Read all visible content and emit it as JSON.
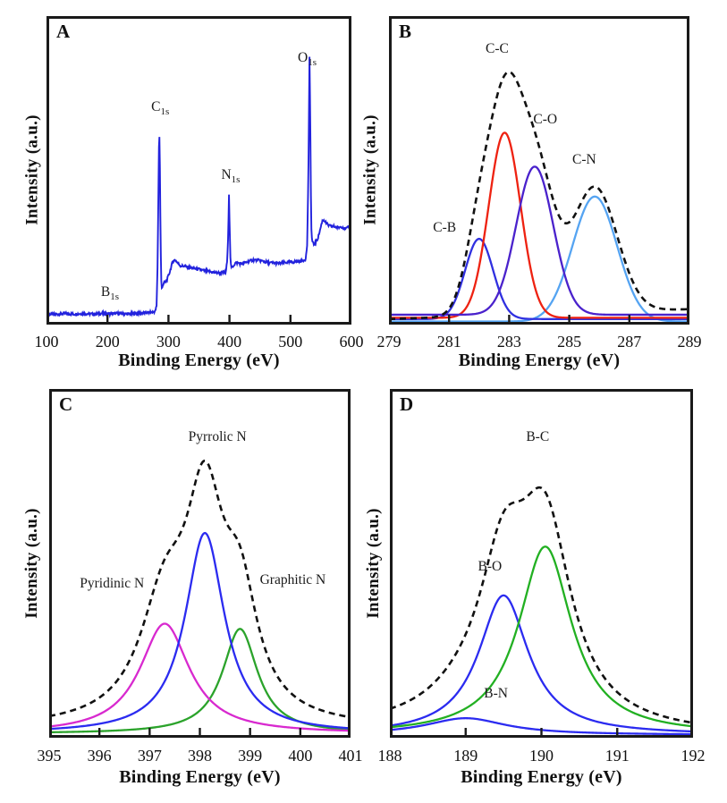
{
  "figure": {
    "background": "#ffffff",
    "axis_color": "#1a1a1a",
    "ylabel": "Intensity (a.u.)",
    "xlabel": "Binding Energy (eV)"
  },
  "chart_data": [
    {
      "type": "line",
      "panel_label": "A",
      "description": "XPS survey spectrum",
      "xlabel": "Binding Energy (eV)",
      "ylabel": "Intensity (a.u.)",
      "xlim": [
        100,
        600
      ],
      "xticks": [
        100,
        200,
        300,
        400,
        500,
        600
      ],
      "xtick_labels": [
        "100",
        "200",
        "300",
        "400",
        "500",
        "600"
      ],
      "grid": false,
      "legend": "none",
      "line_color": "#2222dd",
      "noise": 0.0045,
      "series_points": [
        [
          100,
          0.034
        ],
        [
          115,
          0.033
        ],
        [
          130,
          0.036
        ],
        [
          145,
          0.034
        ],
        [
          160,
          0.036
        ],
        [
          175,
          0.034
        ],
        [
          190,
          0.036
        ],
        [
          205,
          0.035
        ],
        [
          220,
          0.036
        ],
        [
          235,
          0.034
        ],
        [
          250,
          0.037
        ],
        [
          262,
          0.038
        ],
        [
          272,
          0.04
        ],
        [
          278,
          0.042
        ],
        [
          280.5,
          0.06
        ],
        [
          282,
          0.18
        ],
        [
          283.5,
          0.42
        ],
        [
          284.8,
          0.655
        ],
        [
          286,
          0.5
        ],
        [
          287.2,
          0.25
        ],
        [
          288.5,
          0.115
        ],
        [
          290,
          0.125
        ],
        [
          293,
          0.135
        ],
        [
          297,
          0.142
        ],
        [
          302,
          0.17
        ],
        [
          307,
          0.205
        ],
        [
          311,
          0.21
        ],
        [
          315,
          0.2
        ],
        [
          320,
          0.19
        ],
        [
          326,
          0.19
        ],
        [
          333,
          0.185
        ],
        [
          340,
          0.183
        ],
        [
          348,
          0.18
        ],
        [
          356,
          0.176
        ],
        [
          364,
          0.173
        ],
        [
          372,
          0.17
        ],
        [
          380,
          0.168
        ],
        [
          388,
          0.168
        ],
        [
          394,
          0.17
        ],
        [
          396.5,
          0.21
        ],
        [
          398,
          0.3
        ],
        [
          399.2,
          0.425
        ],
        [
          400.5,
          0.3
        ],
        [
          401.8,
          0.2
        ],
        [
          403,
          0.185
        ],
        [
          406,
          0.19
        ],
        [
          410,
          0.2
        ],
        [
          414,
          0.2
        ],
        [
          419,
          0.197
        ],
        [
          425,
          0.2
        ],
        [
          432,
          0.205
        ],
        [
          440,
          0.21
        ],
        [
          448,
          0.208
        ],
        [
          456,
          0.205
        ],
        [
          464,
          0.2
        ],
        [
          472,
          0.2
        ],
        [
          480,
          0.198
        ],
        [
          488,
          0.2
        ],
        [
          496,
          0.202
        ],
        [
          504,
          0.203
        ],
        [
          512,
          0.205
        ],
        [
          520,
          0.208
        ],
        [
          525,
          0.212
        ],
        [
          527.5,
          0.26
        ],
        [
          529.5,
          0.5
        ],
        [
          531.3,
          0.875
        ],
        [
          532.8,
          0.6
        ],
        [
          534,
          0.32
        ],
        [
          535.5,
          0.27
        ],
        [
          538,
          0.26
        ],
        [
          541,
          0.265
        ],
        [
          545,
          0.28
        ],
        [
          549,
          0.31
        ],
        [
          552,
          0.335
        ],
        [
          555,
          0.34
        ],
        [
          558,
          0.33
        ],
        [
          562,
          0.322
        ],
        [
          567,
          0.318
        ],
        [
          572,
          0.318
        ],
        [
          578,
          0.314
        ],
        [
          584,
          0.318
        ],
        [
          590,
          0.31
        ],
        [
          595,
          0.315
        ],
        [
          600,
          0.316
        ]
      ],
      "annotations": [
        {
          "text": "B",
          "sub": "1s",
          "x": 204,
          "y": 0.08
        },
        {
          "text": "C",
          "sub": "1s",
          "x": 286.5,
          "y": 0.68
        },
        {
          "text": "N",
          "sub": "1s",
          "x": 402,
          "y": 0.46
        },
        {
          "text": "O",
          "sub": "1s",
          "x": 527.5,
          "y": 0.84
        }
      ]
    },
    {
      "type": "line",
      "panel_label": "B",
      "description": "C1s high-resolution XPS spectrum with fitted components",
      "xlabel": "Binding Energy (eV)",
      "ylabel": "Intensity (a.u.)",
      "xlim": [
        279,
        289
      ],
      "xticks": [
        279,
        281,
        283,
        285,
        287,
        289
      ],
      "xtick_labels": [
        "279",
        "281",
        "283",
        "285",
        "287",
        "289"
      ],
      "grid": false,
      "legend": "none",
      "components": [
        {
          "name": "C-N",
          "shape": "gaussian",
          "center": 285.85,
          "amplitude": 0.405,
          "fwhm": 1.75,
          "base": 0.01,
          "color": "#55a4f2"
        },
        {
          "name": "C-B",
          "shape": "gaussian",
          "center": 282.0,
          "amplitude": 0.26,
          "fwhm": 1.1,
          "base": 0.018,
          "color": "#3030e0"
        },
        {
          "name": "C-C",
          "shape": "gaussian",
          "center": 282.85,
          "amplitude": 0.6,
          "fwhm": 1.25,
          "base": 0.022,
          "color": "#ee2211"
        },
        {
          "name": "C-O",
          "shape": "gaussian",
          "center": 283.85,
          "amplitude": 0.48,
          "fwhm": 1.45,
          "base": 0.032,
          "color": "#4a22cc"
        }
      ],
      "envelope": {
        "name": "sum envelope",
        "baseline_left": 0.018,
        "baseline_right": 0.05,
        "color": "#111111",
        "dashed": true
      },
      "annotations": [
        {
          "text": "C-B",
          "x": 280.85,
          "y": 0.29
        },
        {
          "text": "C-C",
          "x": 282.6,
          "y": 0.87
        },
        {
          "text": "C-O",
          "x": 284.2,
          "y": 0.64
        },
        {
          "text": "C-N",
          "x": 285.5,
          "y": 0.51
        }
      ]
    },
    {
      "type": "line",
      "panel_label": "C",
      "description": "N1s high-resolution XPS spectrum with fitted components",
      "xlabel": "Binding Energy (eV)",
      "ylabel": "Intensity (a.u.)",
      "xlim": [
        395,
        401
      ],
      "xticks": [
        395,
        396,
        397,
        398,
        399,
        400,
        401
      ],
      "xtick_labels": [
        "395",
        "396",
        "397",
        "398",
        "399",
        "400",
        "401"
      ],
      "grid": false,
      "legend": "none",
      "components": [
        {
          "name": "Graphitic N",
          "shape": "lorentzian",
          "center": 398.8,
          "amplitude": 0.3,
          "fwhm": 0.85,
          "base": 0.012,
          "color": "#2ba32b"
        },
        {
          "name": "Pyridinic N",
          "shape": "lorentzian",
          "center": 397.3,
          "amplitude": 0.315,
          "fwhm": 1.2,
          "base": 0.012,
          "color": "#d829cf"
        },
        {
          "name": "Pyrrolic N",
          "shape": "lorentzian",
          "center": 398.1,
          "amplitude": 0.575,
          "fwhm": 0.95,
          "base": 0.012,
          "color": "#2b2bf0"
        }
      ],
      "envelope": {
        "name": "sum envelope",
        "baseline_left": 0.025,
        "baseline_right": 0.025,
        "color": "#111111",
        "dashed": true
      },
      "annotations": [
        {
          "text": "Pyridinic N",
          "x": 396.25,
          "y": 0.42
        },
        {
          "text": "Pyrrolic N",
          "x": 398.35,
          "y": 0.84
        },
        {
          "text": "Graphitic N",
          "x": 399.85,
          "y": 0.43
        }
      ]
    },
    {
      "type": "line",
      "panel_label": "D",
      "description": "B1s high-resolution XPS spectrum with fitted components",
      "xlabel": "Binding Energy (eV)",
      "ylabel": "Intensity (a.u.)",
      "xlim": [
        188,
        192
      ],
      "xticks": [
        188,
        189,
        190,
        191,
        192
      ],
      "xtick_labels": [
        "188",
        "189",
        "190",
        "191",
        "192"
      ],
      "grid": false,
      "legend": "none",
      "components": [
        {
          "name": "B-N",
          "shape": "lorentzian",
          "center": 189.0,
          "amplitude": 0.048,
          "fwhm": 1.3,
          "base": 0.008,
          "color": "#2b2bf0"
        },
        {
          "name": "B-O",
          "shape": "lorentzian",
          "center": 189.5,
          "amplitude": 0.4,
          "fwhm": 0.8,
          "base": 0.008,
          "color": "#2b2bf0"
        },
        {
          "name": "B-C",
          "shape": "lorentzian",
          "center": 190.05,
          "amplitude": 0.54,
          "fwhm": 0.85,
          "base": 0.008,
          "color": "#22b022"
        }
      ],
      "envelope": {
        "name": "sum envelope",
        "baseline_left": 0.02,
        "baseline_right": 0.006,
        "color": "#111111",
        "dashed": true
      },
      "annotations": [
        {
          "text": "B-C",
          "x": 189.95,
          "y": 0.84
        },
        {
          "text": "B-O",
          "x": 189.32,
          "y": 0.47
        },
        {
          "text": "B-N",
          "x": 189.4,
          "y": 0.105
        }
      ]
    }
  ],
  "layout_note": "2x2 grid of XPS spectra panels A-D"
}
